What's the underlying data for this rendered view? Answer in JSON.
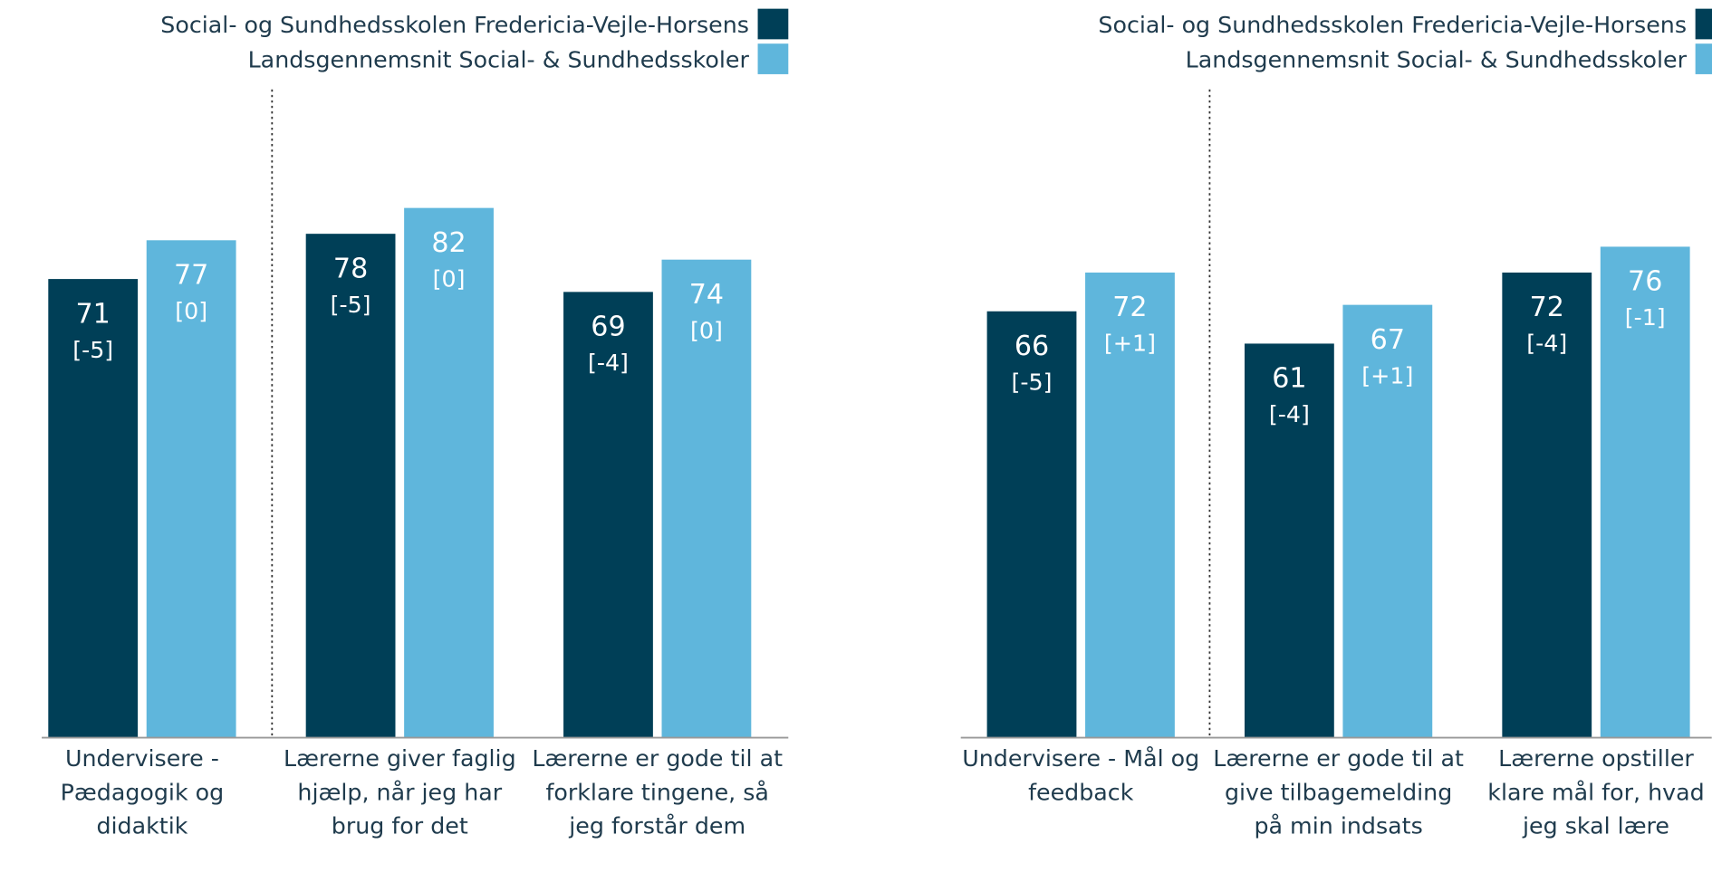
{
  "chart_data": [
    {
      "type": "bar",
      "categories": [
        "Undervisere - Pædagogik og didaktik",
        "Lærerne giver faglig hjælp, når jeg har brug for det",
        "Lærerne er gode til at forklare tingene, så jeg forstår dem"
      ],
      "series": [
        {
          "name": "Social- og Sundhedsskolen Fredericia-Vejle-Horsens",
          "color": "#003f57",
          "values": [
            71,
            78,
            69
          ],
          "differences": [
            "[-5]",
            "[-5]",
            "[-4]"
          ]
        },
        {
          "name": "Landsgennemsnit Social- & Sundhedsskoler",
          "color": "#5fb6dc",
          "values": [
            77,
            82,
            74
          ],
          "differences": [
            "[0]",
            "[0]",
            "[0]"
          ]
        }
      ],
      "ylim": [
        0,
        100
      ]
    },
    {
      "type": "bar",
      "categories": [
        "Undervisere - Mål og feedback",
        "Lærerne er gode til at give tilbagemelding på min indsats",
        "Lærerne opstiller klare mål for, hvad jeg skal lære"
      ],
      "series": [
        {
          "name": "Social- og Sundhedsskolen Fredericia-Vejle-Horsens",
          "color": "#003f57",
          "values": [
            66,
            61,
            72
          ],
          "differences": [
            "[-5]",
            "[-4]",
            "[-4]"
          ]
        },
        {
          "name": "Landsgennemsnit Social- & Sundhedsskoler",
          "color": "#5fb6dc",
          "values": [
            72,
            67,
            76
          ],
          "differences": [
            "[+1]",
            "[+1]",
            "[-1]"
          ]
        }
      ],
      "ylim": [
        0,
        100
      ]
    }
  ]
}
